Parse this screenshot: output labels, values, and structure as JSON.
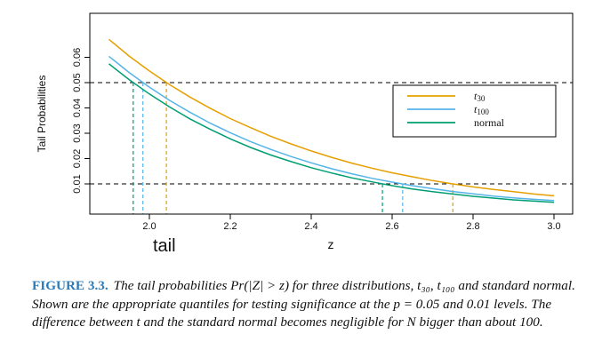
{
  "chart_data": {
    "type": "line",
    "xlabel": "z",
    "ylabel": "Tail Probabilities",
    "annotation": "tail",
    "xlim": [
      1.9,
      3.0
    ],
    "ylim": [
      0.0,
      0.07
    ],
    "x_ticks": [
      2.0,
      2.2,
      2.4,
      2.6,
      2.8,
      3.0
    ],
    "x_tick_labels": [
      "2.0",
      "2.2",
      "2.4",
      "2.6",
      "2.8",
      "3.0"
    ],
    "y_ticks": [
      0.01,
      0.02,
      0.03,
      0.04,
      0.05,
      0.06
    ],
    "y_tick_labels": [
      "0.01",
      "0.02",
      "0.03",
      "0.04",
      "0.05",
      "0.06"
    ],
    "x": [
      1.9,
      1.95,
      2.0,
      2.05,
      2.1,
      2.15,
      2.2,
      2.25,
      2.3,
      2.35,
      2.4,
      2.45,
      2.5,
      2.55,
      2.6,
      2.65,
      2.7,
      2.75,
      2.8,
      2.85,
      2.9,
      2.95,
      3.0
    ],
    "series": [
      {
        "name": "t30",
        "color": "#e69f00",
        "values": [
          0.0671,
          0.0605,
          0.0546,
          0.0492,
          0.0443,
          0.0399,
          0.0358,
          0.0322,
          0.0288,
          0.0258,
          0.023,
          0.0205,
          0.0182,
          0.0162,
          0.0144,
          0.0128,
          0.0113,
          0.01,
          0.0088,
          0.0078,
          0.0069,
          0.006,
          0.0053
        ]
      },
      {
        "name": "t100",
        "color": "#56b4e9",
        "values": [
          0.0604,
          0.054,
          0.0482,
          0.043,
          0.0383,
          0.034,
          0.0302,
          0.0267,
          0.0236,
          0.0208,
          0.0183,
          0.016,
          0.014,
          0.0122,
          0.0107,
          0.0093,
          0.0081,
          0.007,
          0.0061,
          0.0052,
          0.0045,
          0.0039,
          0.0034
        ]
      },
      {
        "name": "normal",
        "color": "#009e73",
        "values": [
          0.0574,
          0.0512,
          0.0455,
          0.0404,
          0.0357,
          0.0316,
          0.0278,
          0.0244,
          0.0214,
          0.0188,
          0.0164,
          0.0143,
          0.0124,
          0.0108,
          0.0093,
          0.008,
          0.0069,
          0.006,
          0.0051,
          0.0044,
          0.0037,
          0.0032,
          0.0027
        ]
      }
    ],
    "reference_lines": [
      0.05,
      0.01
    ],
    "quantiles": [
      {
        "series": "t30",
        "level": 0.05,
        "x": 2.042
      },
      {
        "series": "t100",
        "level": 0.05,
        "x": 1.984
      },
      {
        "series": "normal",
        "level": 0.05,
        "x": 1.96
      },
      {
        "series": "t30",
        "level": 0.01,
        "x": 2.75
      },
      {
        "series": "t100",
        "level": 0.01,
        "x": 2.626
      },
      {
        "series": "normal",
        "level": 0.01,
        "x": 2.576
      }
    ],
    "legend_placement": "right",
    "grid": false
  },
  "caption": {
    "label": "FIGURE 3.3.",
    "text": "The tail probabilities Pr(|Z| > z) for three distributions, t₃₀, t₁₀₀ and standard normal. Shown are the appropriate quantiles for testing significance at the p = 0.05 and 0.01 levels. The difference between t and the standard normal becomes negligible for N bigger than about 100."
  }
}
